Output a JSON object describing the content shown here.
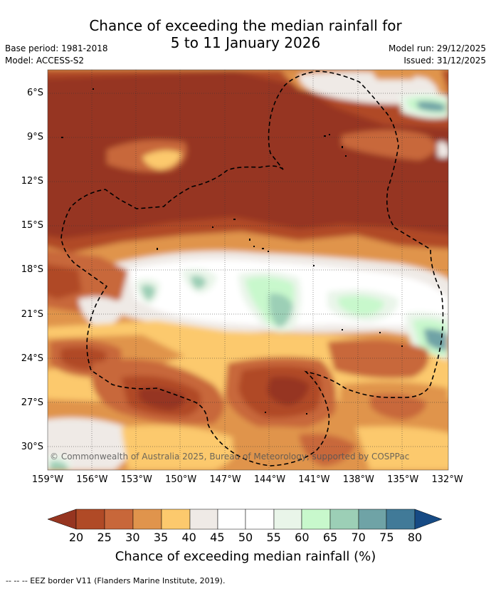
{
  "title": {
    "line1": "Chance of exceeding the median rainfall for",
    "line2": "5 to 11 January 2026"
  },
  "meta": {
    "base_period": "Base period: 1981-2018",
    "model": "Model: ACCESS-S2",
    "model_run": "Model run: 29/12/2025",
    "issued": "Issued: 31/12/2025"
  },
  "map": {
    "copyright": "© Commonwealth of Australia 2025, Bureau of Meteorology, supported by COSPPac",
    "lat_labels": [
      "6°S",
      "9°S",
      "12°S",
      "15°S",
      "18°S",
      "21°S",
      "24°S",
      "27°S",
      "30°S"
    ],
    "lon_labels": [
      "159°W",
      "156°W",
      "153°W",
      "150°W",
      "147°W",
      "144°W",
      "141°W",
      "138°W",
      "135°W",
      "132°W"
    ],
    "eez_border": "dashed",
    "colors": {
      "c15": "#963520",
      "c20": "#b04a26",
      "c25": "#c8673a",
      "c30": "#e0944c",
      "c35": "#fcc96d",
      "c40": "#efeae6",
      "c45": "#ffffff",
      "c50": "#ffffff",
      "c55": "#e9f5e9",
      "c60": "#c8f8cc",
      "c65": "#9ccfb6",
      "c70": "#6fa3a6",
      "c75": "#417a98",
      "c80": "#164a84"
    }
  },
  "colorbar": {
    "ticks": [
      "20",
      "25",
      "30",
      "35",
      "40",
      "45",
      "50",
      "55",
      "60",
      "65",
      "70",
      "75",
      "80"
    ],
    "label": "Chance of exceeding median rainfall (%)"
  },
  "footer": "--  --  -- EEZ border V11 (Flanders Marine Institute, 2019)."
}
